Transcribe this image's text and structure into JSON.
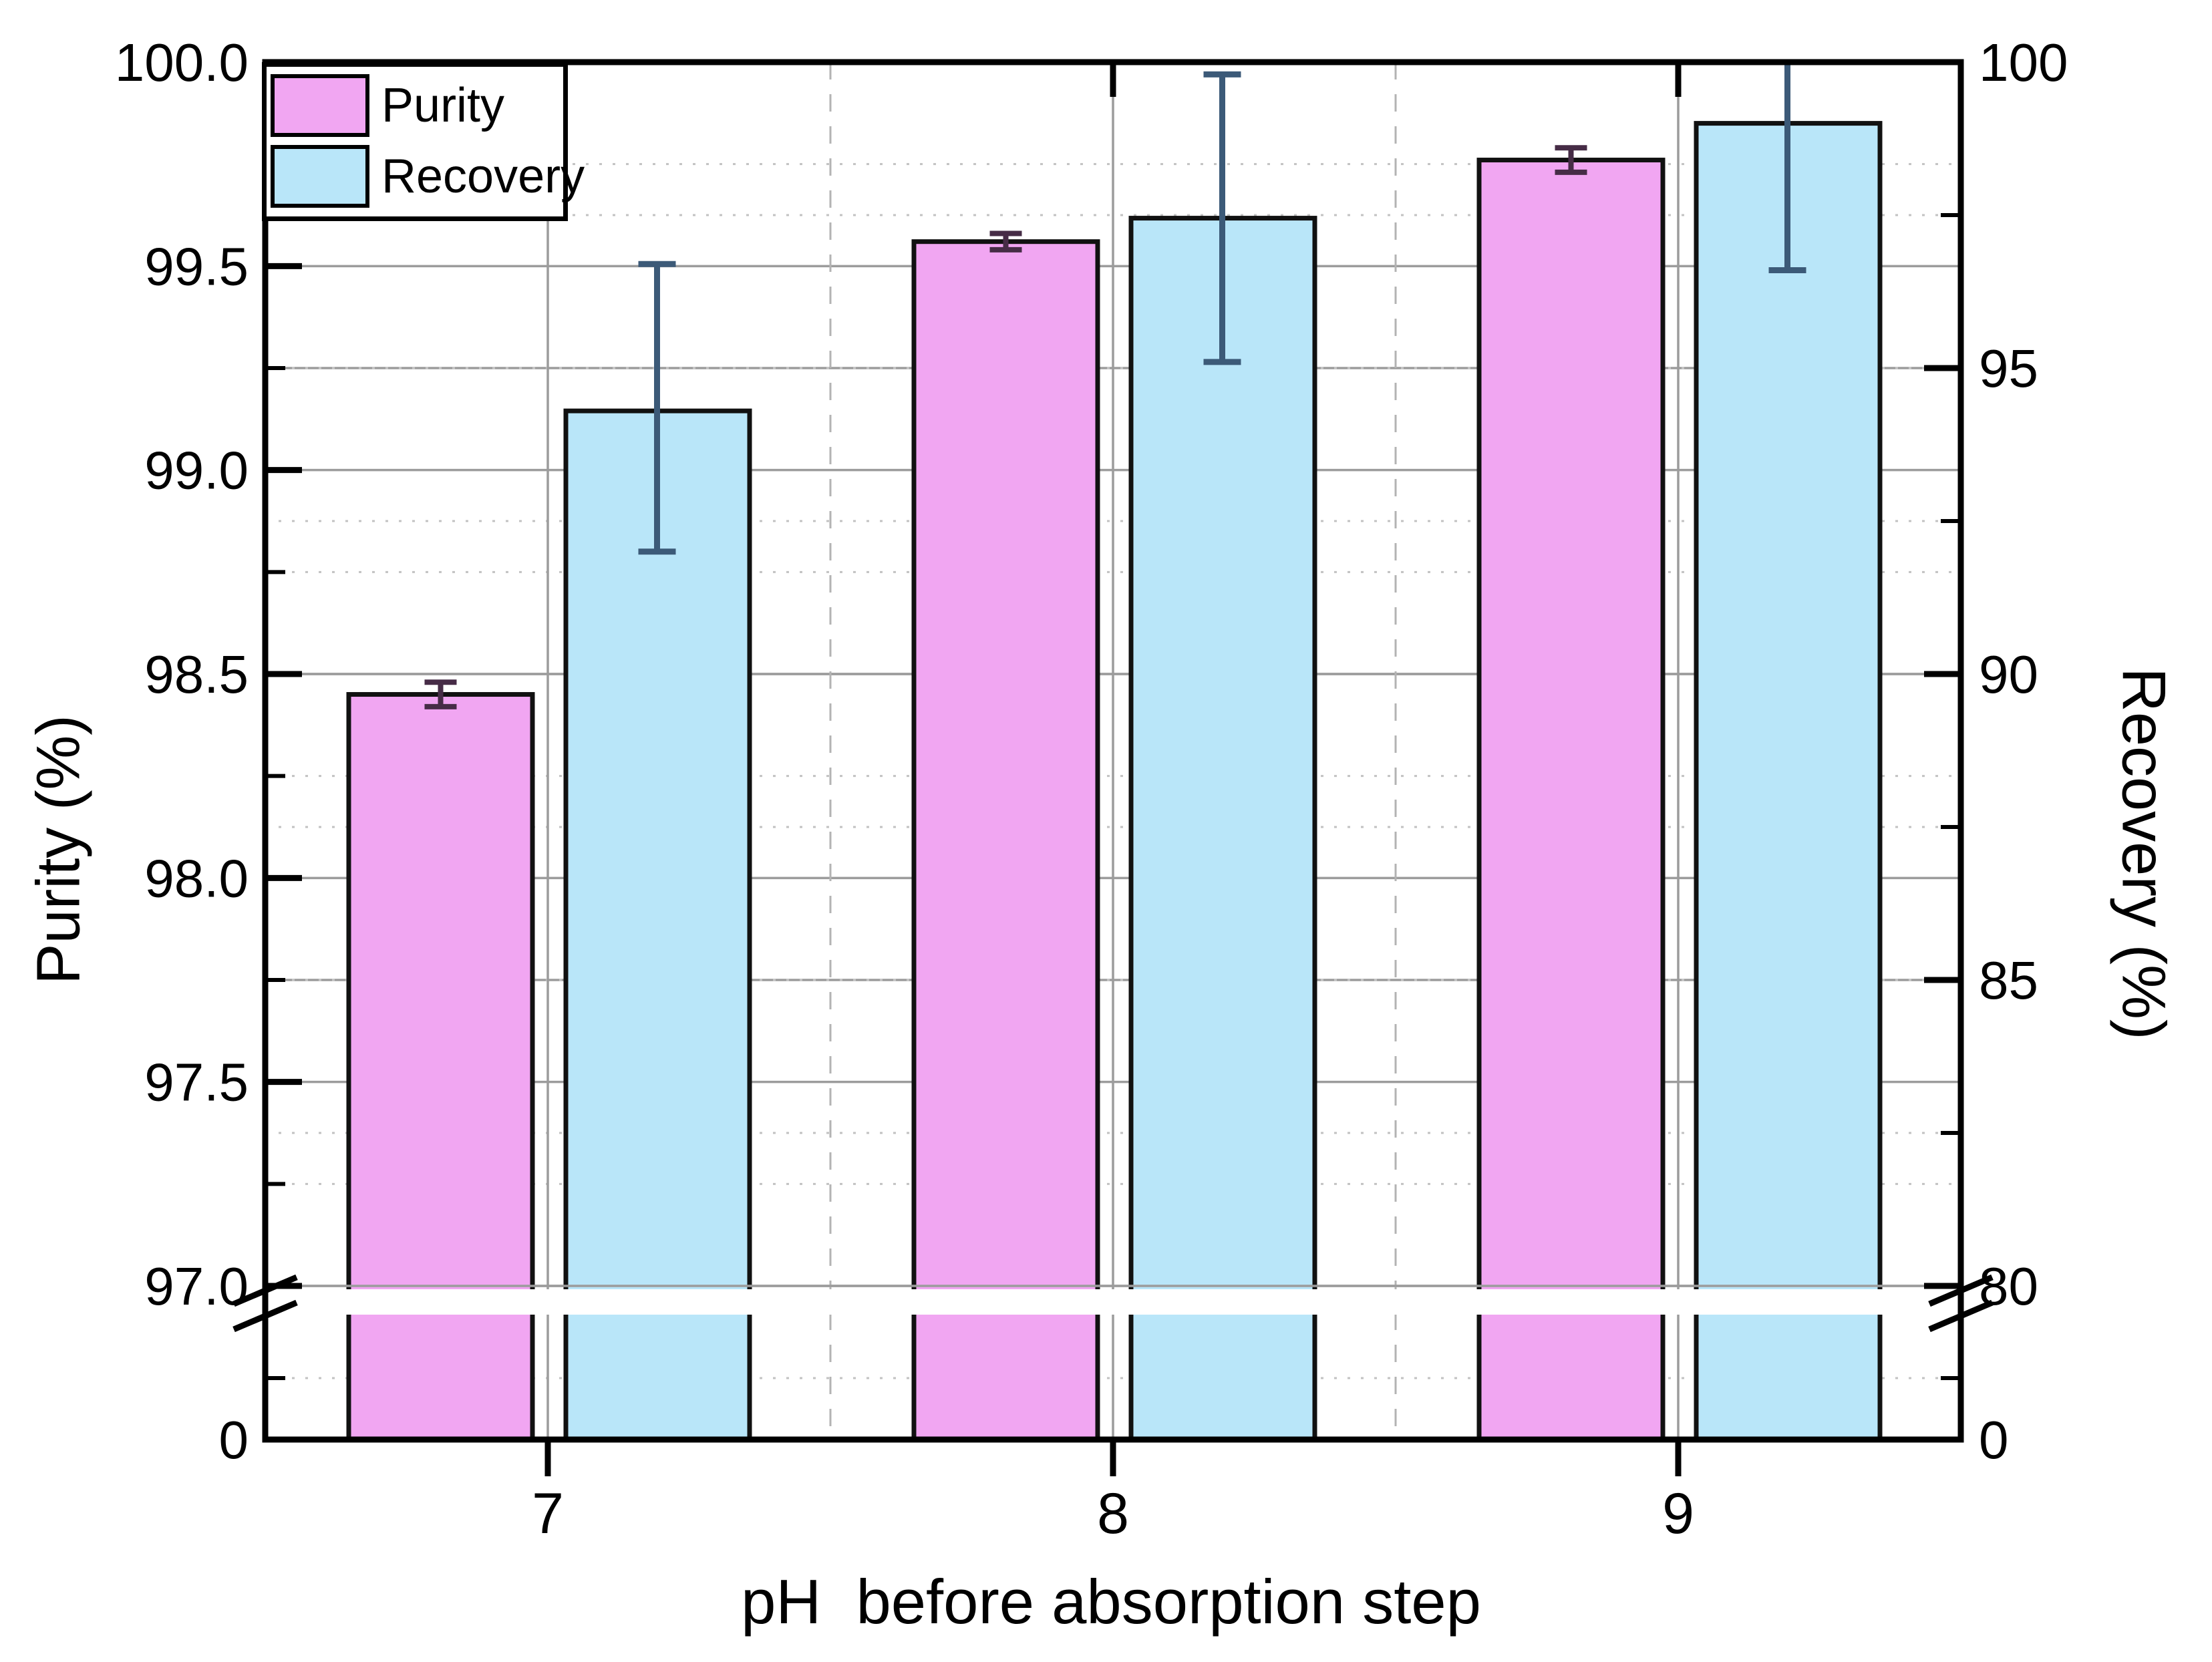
{
  "figure": {
    "background": "#ffffff"
  },
  "chart_data": {
    "type": "bar",
    "title": "",
    "x_axis": {
      "label": "pH  before absorption step",
      "categories": [
        "7",
        "8",
        "9"
      ]
    },
    "y_left_axis": {
      "label": "Purity (%)",
      "ticks": [
        {
          "label": "100.0",
          "v": 100.0
        },
        {
          "label": "99.5",
          "v": 99.5
        },
        {
          "label": "99.0",
          "v": 99.0
        },
        {
          "label": "98.5",
          "v": 98.5
        },
        {
          "label": "98.0",
          "v": 98.0
        },
        {
          "label": "97.5",
          "v": 97.5
        },
        {
          "label": "97.0",
          "v": 97.0
        }
      ],
      "minor_step": 0.25,
      "axis_break": true,
      "break_label": "0",
      "range": [
        97.0,
        100.0
      ]
    },
    "y_right_axis": {
      "label": "Recovery (%)",
      "ticks": [
        {
          "label": "100",
          "v": 100
        },
        {
          "label": "95",
          "v": 95
        },
        {
          "label": "90",
          "v": 90
        },
        {
          "label": "85",
          "v": 85
        },
        {
          "label": "80",
          "v": 80
        }
      ],
      "minor_step": 2.5,
      "axis_break": true,
      "break_label": "0",
      "range": [
        80,
        100
      ]
    },
    "series": [
      {
        "name": "Purity",
        "axis": "left",
        "color": "#f1a6f2",
        "edge_color": "#111111",
        "error_color": "#462c46",
        "values": [
          98.45,
          99.56,
          99.76
        ],
        "err_low": [
          98.42,
          99.54,
          99.73
        ],
        "err_high": [
          98.48,
          99.58,
          99.79
        ]
      },
      {
        "name": "Recovery",
        "axis": "right",
        "color": "#b9e6f9",
        "edge_color": "#111111",
        "error_color": "#3c5a78",
        "values": [
          94.3,
          97.45,
          99.0
        ],
        "err_low": [
          92.0,
          95.1,
          96.6
        ],
        "err_high": [
          96.7,
          99.8,
          100.0
        ]
      }
    ],
    "legend": {
      "position": "top-left"
    },
    "grid": {
      "h_major_solid": true,
      "h_minor_dotted": true,
      "v_major_solid": true,
      "v_minor_dashed": true
    }
  }
}
